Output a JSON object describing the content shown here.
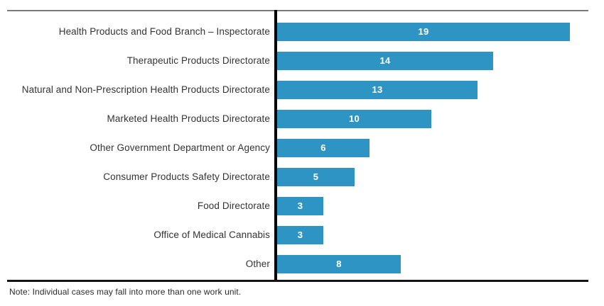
{
  "chart_data": {
    "type": "bar",
    "orientation": "horizontal",
    "categories": [
      "Health Products and Food Branch – Inspectorate",
      "Therapeutic Products Directorate",
      "Natural and Non-Prescription Health Products Directorate",
      "Marketed Health Products Directorate",
      "Other Government Department or Agency",
      "Consumer Products Safety Directorate",
      "Food Directorate",
      "Office of Medical Cannabis",
      "Other"
    ],
    "values": [
      19,
      14,
      13,
      10,
      6,
      5,
      3,
      3,
      8
    ],
    "title": "",
    "xlabel": "",
    "ylabel": "",
    "xlim": [
      0,
      20
    ],
    "grid": false,
    "legend": false,
    "value_labels": "inside-center",
    "bar_color": "#2E94C4",
    "value_label_color": "#FFFFFF",
    "axis_color": "#000000",
    "top_rule_color": "#7A7A7A",
    "bottom_rule_color": "#141414"
  },
  "note": "Note: Individual cases may fall into more than one work unit."
}
